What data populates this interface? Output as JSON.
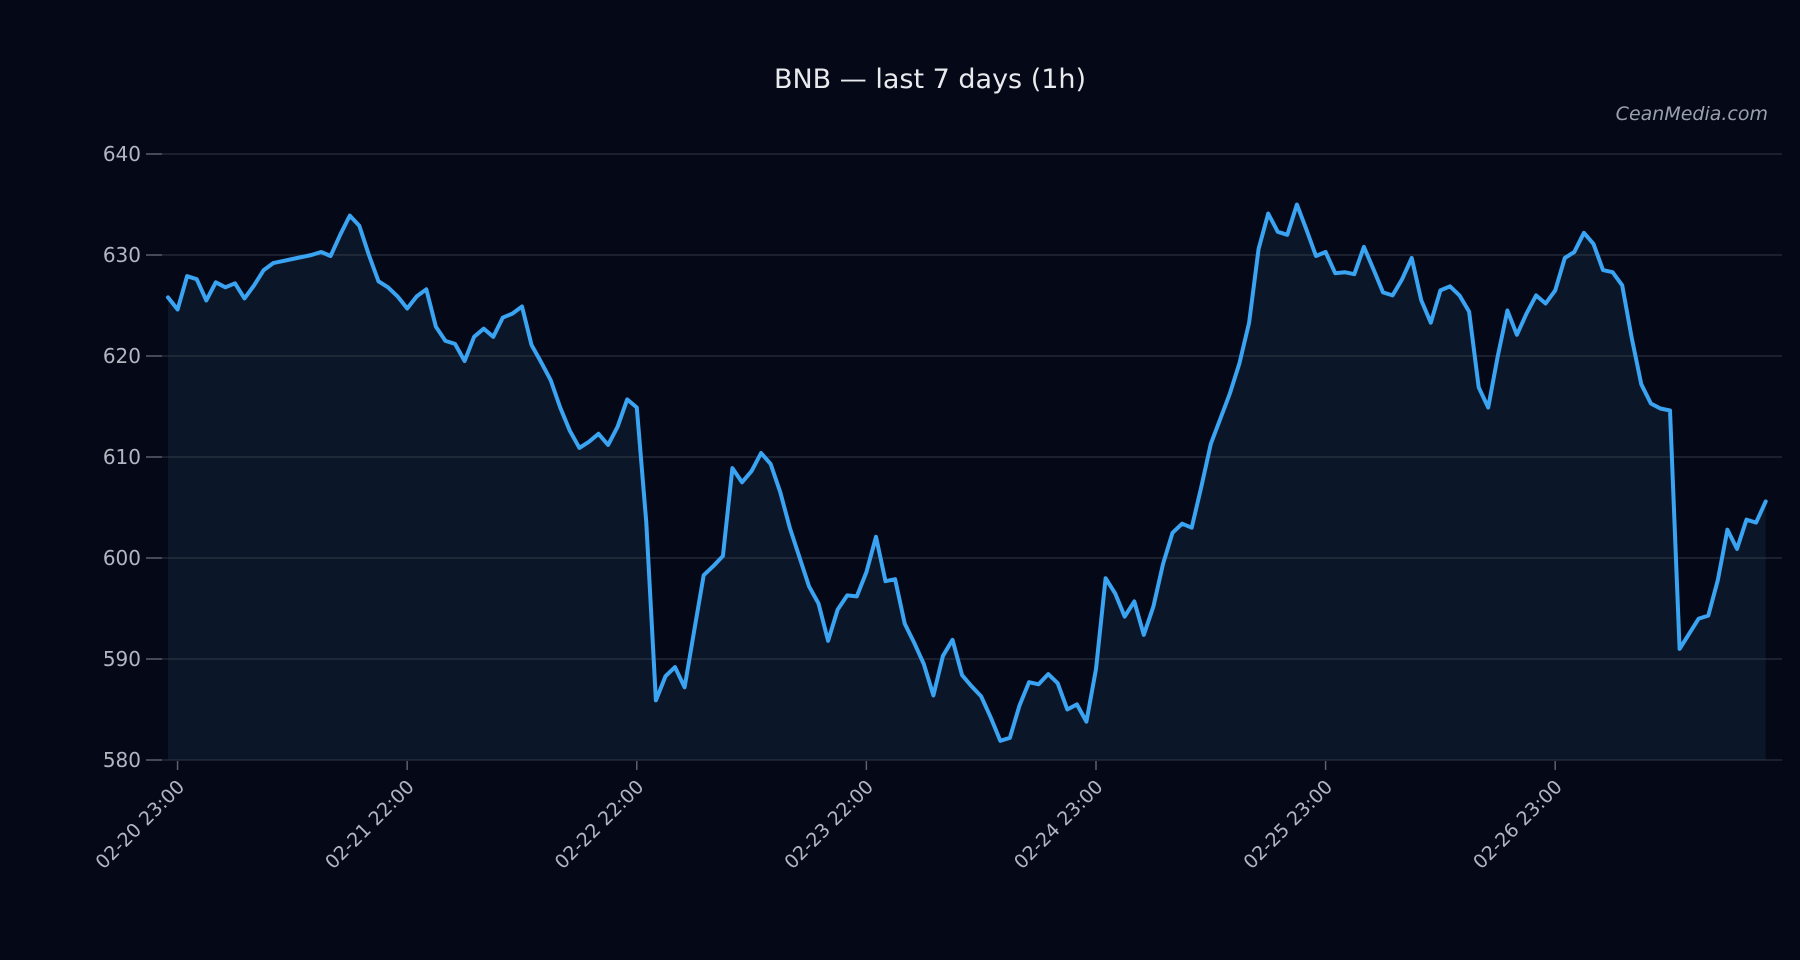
{
  "page": {
    "title": "BNB — last 7 days (1h)",
    "watermark": "CeanMedia.com"
  },
  "colors": {
    "background": "#040817",
    "fill_under_line": "#0b1728",
    "line": "#3aa3f2",
    "grid": "#303845",
    "tick": "#5a6170",
    "title_text": "#e8eaee",
    "axis_text": "#b2b6c0",
    "watermark_text": "#9aa0ac"
  },
  "chart_data": {
    "type": "line",
    "title": "BNB — last 7 days (1h)",
    "symbol": "BNB",
    "period": "last 7 days",
    "interval": "1h",
    "xlabel": "",
    "ylabel": "",
    "ylim": [
      580,
      642
    ],
    "yticks": [
      580,
      590,
      600,
      610,
      620,
      630,
      640
    ],
    "grid": "horizontal",
    "legend": "none",
    "fill_under_line": true,
    "x_tick_labels": [
      "02-20 23:00",
      "02-21 22:00",
      "02-22 22:00",
      "02-23 22:00",
      "02-24 23:00",
      "02-25 23:00",
      "02-26 23:00"
    ],
    "x_tick_indices": [
      1,
      25,
      49,
      73,
      97,
      121,
      145
    ],
    "n_points": 168,
    "values": [
      625.8,
      624.6,
      627.9,
      627.6,
      625.5,
      627.3,
      626.8,
      627.2,
      625.7,
      627.0,
      628.5,
      629.2,
      629.4,
      629.6,
      629.8,
      630.0,
      630.3,
      629.9,
      632.0,
      633.9,
      632.9,
      630.0,
      627.4,
      626.8,
      625.9,
      624.7,
      625.9,
      626.6,
      622.9,
      621.5,
      621.2,
      619.5,
      621.9,
      622.7,
      621.9,
      623.8,
      624.2,
      624.9,
      621.1,
      619.4,
      617.6,
      614.9,
      612.6,
      610.9,
      611.5,
      612.3,
      611.2,
      613.0,
      615.7,
      614.9,
      603.5,
      585.9,
      588.3,
      589.2,
      587.2,
      592.8,
      598.3,
      599.2,
      600.2,
      608.9,
      607.5,
      608.6,
      610.4,
      609.3,
      606.5,
      603.0,
      600.1,
      597.2,
      595.5,
      591.8,
      594.9,
      596.3,
      596.2,
      598.6,
      602.1,
      597.7,
      597.9,
      593.5,
      591.6,
      589.5,
      586.4,
      590.3,
      591.9,
      588.4,
      587.3,
      586.3,
      584.2,
      581.9,
      582.2,
      585.4,
      587.7,
      587.5,
      588.5,
      587.6,
      585.0,
      585.5,
      583.8,
      589.0,
      598.0,
      596.5,
      594.2,
      595.7,
      592.4,
      595.2,
      599.4,
      602.5,
      603.4,
      603.0,
      607.0,
      611.3,
      613.8,
      616.3,
      619.3,
      623.3,
      630.6,
      634.1,
      632.3,
      632.0,
      635.0,
      632.5,
      629.9,
      630.3,
      628.2,
      628.3,
      628.1,
      630.8,
      628.6,
      626.3,
      626.0,
      627.6,
      629.7,
      625.5,
      623.3,
      626.5,
      626.9,
      626.0,
      624.4,
      616.9,
      614.9,
      620.0,
      624.5,
      622.1,
      624.2,
      626.0,
      625.2,
      626.5,
      629.7,
      630.3,
      632.2,
      631.1,
      628.5,
      628.3,
      627.0,
      621.8,
      617.2,
      615.3,
      614.8,
      614.6,
      591.0,
      592.5,
      594.0,
      594.3,
      597.8,
      602.8,
      600.9,
      603.8,
      603.5,
      605.6
    ]
  }
}
